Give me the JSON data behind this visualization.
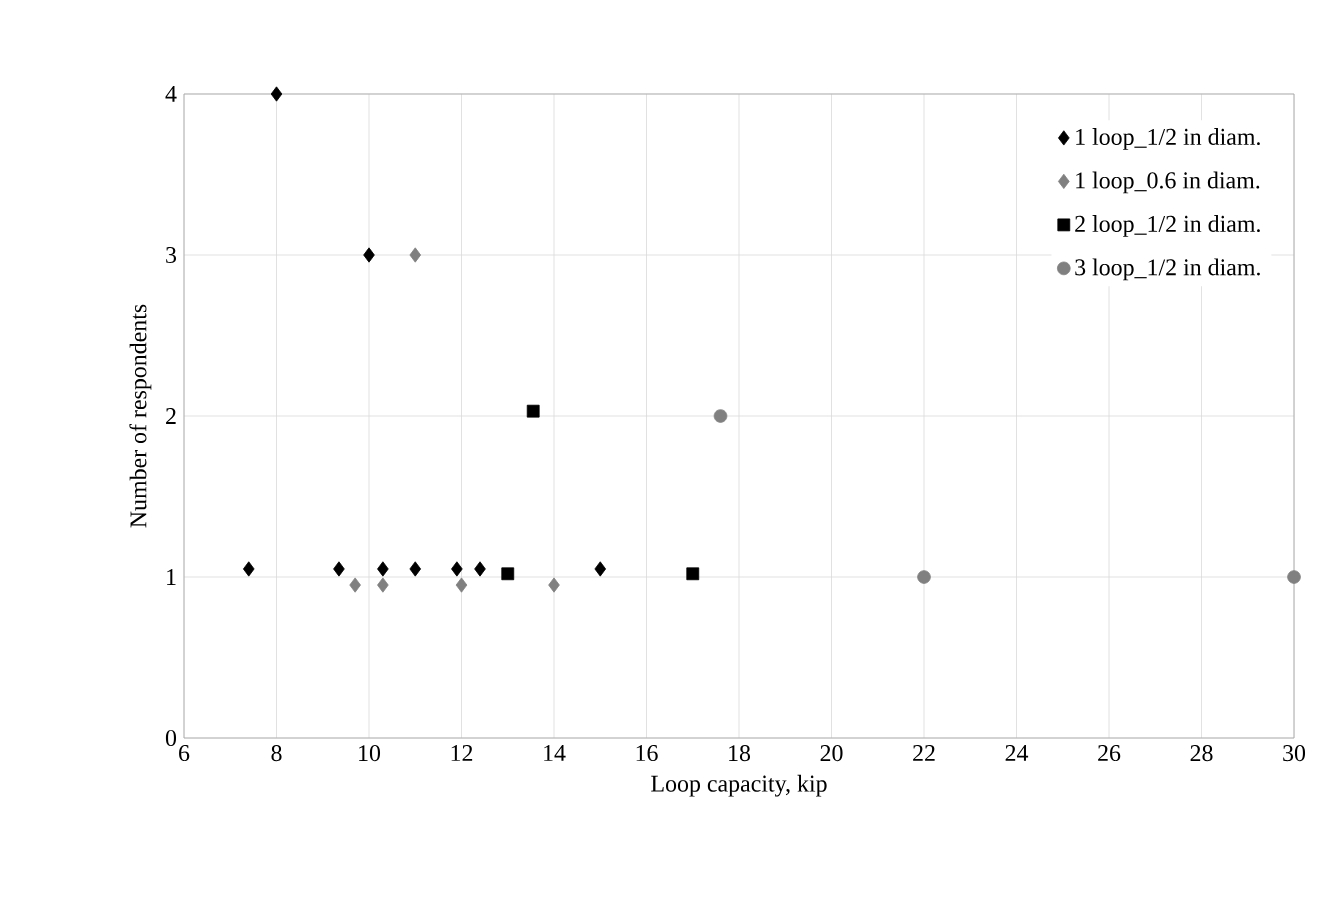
{
  "chart_data": {
    "type": "scatter",
    "xlabel": "Loop capacity, kip",
    "ylabel": "Number of respondents",
    "xlim": [
      6,
      30
    ],
    "xticks": [
      6,
      8,
      10,
      12,
      14,
      16,
      18,
      20,
      22,
      24,
      26,
      28,
      30
    ],
    "ylim": [
      0,
      4
    ],
    "yticks": [
      0,
      1,
      2,
      3,
      4
    ],
    "grid": true,
    "legend": "top right",
    "series": [
      {
        "name": "1 loop_1/2 in diam.",
        "color": "#000000",
        "marker": "diamond",
        "x": [
          7.4,
          8,
          9.35,
          10,
          10.3,
          11,
          11.9,
          12.4,
          15
        ],
        "values": [
          1.05,
          4,
          1.05,
          3,
          1.05,
          1.05,
          1.05,
          1.05,
          1.05
        ]
      },
      {
        "name": "1 loop_0.6 in diam.",
        "color": "#808080",
        "marker": "diamond",
        "x": [
          9.7,
          10.3,
          11,
          12,
          14
        ],
        "values": [
          0.95,
          0.95,
          3,
          0.95,
          0.95
        ]
      },
      {
        "name": "2 loop_1/2 in diam.",
        "color": "#000000",
        "marker": "square",
        "x": [
          13,
          13.55,
          17
        ],
        "values": [
          1.02,
          2.03,
          1.02
        ]
      },
      {
        "name": "3 loop_1/2 in diam.",
        "color": "#808080",
        "marker": "circle",
        "x": [
          17.6,
          22,
          30
        ],
        "values": [
          2,
          1,
          1
        ]
      }
    ]
  }
}
